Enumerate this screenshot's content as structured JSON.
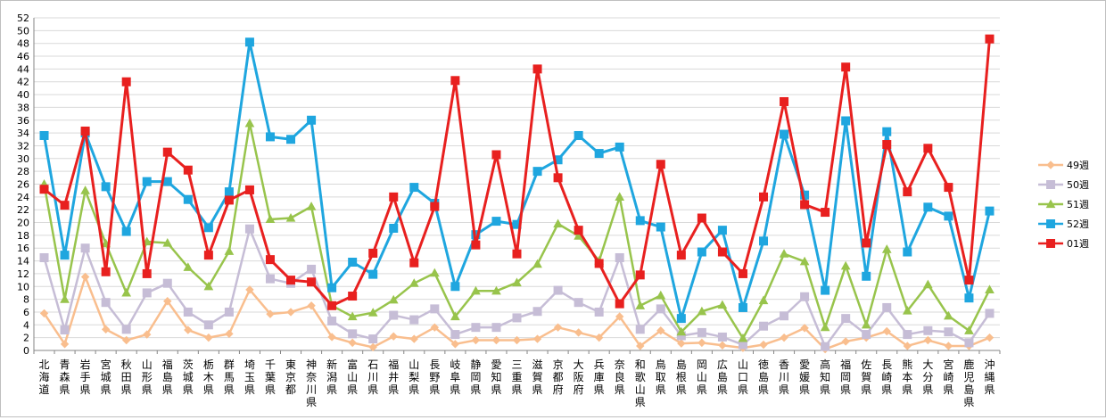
{
  "chart_data": {
    "type": "line",
    "title": "",
    "xlabel": "",
    "ylabel": "",
    "ylim": [
      0,
      52
    ],
    "ytick_step": 2,
    "grid": true,
    "legend_position": "right",
    "categories": [
      "北海道",
      "青森県",
      "岩手県",
      "宮城県",
      "秋田県",
      "山形県",
      "福島県",
      "茨城県",
      "栃木県",
      "群馬県",
      "埼玉県",
      "千葉県",
      "東京都",
      "神奈川県",
      "新潟県",
      "富山県",
      "石川県",
      "福井県",
      "山梨県",
      "長野県",
      "岐阜県",
      "静岡県",
      "愛知県",
      "三重県",
      "滋賀県",
      "京都府",
      "大阪府",
      "兵庫県",
      "奈良県",
      "和歌山県",
      "鳥取県",
      "島根県",
      "岡山県",
      "広島県",
      "山口県",
      "徳島県",
      "香川県",
      "愛媛県",
      "高知県",
      "福岡県",
      "佐賀県",
      "長崎県",
      "熊本県",
      "大分県",
      "宮崎県",
      "鹿児島県",
      "沖縄県"
    ],
    "series": [
      {
        "name": "49週",
        "color": "#f9be8e",
        "marker": "diamond",
        "values": [
          5.8,
          1.0,
          11.5,
          3.3,
          1.6,
          2.5,
          7.7,
          3.2,
          2.0,
          2.6,
          9.5,
          5.7,
          6.0,
          7.0,
          2.1,
          1.2,
          0.5,
          2.2,
          1.8,
          3.6,
          1.0,
          1.6,
          1.6,
          1.6,
          1.8,
          3.6,
          2.8,
          2.0,
          5.3,
          0.7,
          3.1,
          1.1,
          1.2,
          0.8,
          0.4,
          0.9,
          2.0,
          3.5,
          0.2,
          1.4,
          2.0,
          3.0,
          0.7,
          1.6,
          0.7,
          0.7,
          2.0
        ]
      },
      {
        "name": "50週",
        "color": "#c6bdd6",
        "marker": "square",
        "values": [
          14.5,
          3.2,
          16.0,
          7.5,
          3.3,
          9.0,
          10.5,
          6.0,
          4.0,
          6.0,
          19.0,
          11.2,
          10.5,
          12.7,
          4.6,
          2.6,
          1.8,
          5.5,
          4.8,
          6.5,
          2.5,
          3.6,
          3.6,
          5.1,
          6.1,
          9.4,
          7.5,
          6.0,
          14.5,
          3.3,
          6.5,
          2.3,
          2.8,
          2.1,
          0.9,
          3.8,
          5.4,
          8.4,
          0.6,
          5.0,
          2.5,
          6.7,
          2.5,
          3.1,
          2.9,
          1.2,
          5.8
        ]
      },
      {
        "name": "51週",
        "color": "#98c44c",
        "marker": "triangle",
        "values": [
          26.0,
          8.0,
          25.0,
          16.7,
          9.0,
          17.0,
          16.8,
          13.0,
          10.0,
          15.5,
          35.5,
          20.5,
          20.7,
          22.5,
          7.0,
          5.3,
          5.9,
          7.9,
          10.5,
          12.1,
          5.3,
          9.3,
          9.3,
          10.6,
          13.5,
          19.8,
          17.9,
          14.0,
          24.0,
          7.0,
          8.6,
          2.9,
          6.1,
          7.1,
          1.9,
          7.8,
          15.1,
          13.9,
          3.6,
          13.2,
          4.0,
          15.8,
          6.2,
          10.3,
          5.4,
          3.1,
          9.5
        ]
      },
      {
        "name": "52週",
        "color": "#1fa6df",
        "marker": "square",
        "values": [
          33.6,
          14.9,
          34.0,
          25.6,
          18.6,
          26.4,
          26.4,
          23.6,
          19.2,
          24.8,
          48.2,
          33.4,
          33.0,
          36.0,
          9.8,
          13.8,
          11.9,
          19.1,
          25.5,
          23.0,
          10.0,
          18.1,
          20.2,
          19.7,
          28.0,
          29.8,
          33.6,
          30.8,
          31.8,
          20.3,
          19.3,
          5.0,
          15.4,
          18.8,
          6.7,
          17.1,
          33.8,
          24.3,
          9.4,
          35.9,
          11.6,
          34.2,
          15.4,
          22.4,
          21.0,
          8.2,
          21.8
        ]
      },
      {
        "name": "01週",
        "color": "#e8201f",
        "marker": "square",
        "values": [
          25.2,
          22.7,
          34.3,
          12.3,
          42.0,
          12.0,
          31.0,
          28.2,
          14.9,
          23.5,
          25.1,
          14.2,
          11.0,
          10.7,
          7.0,
          8.5,
          15.2,
          24.0,
          13.7,
          22.5,
          42.2,
          16.5,
          30.6,
          15.1,
          44.0,
          27.0,
          18.8,
          13.6,
          7.3,
          11.8,
          29.1,
          14.9,
          20.7,
          15.4,
          12.0,
          24.0,
          38.9,
          22.8,
          21.6,
          44.3,
          16.8,
          32.2,
          24.8,
          31.6,
          25.5,
          11.0,
          48.7
        ]
      }
    ]
  }
}
